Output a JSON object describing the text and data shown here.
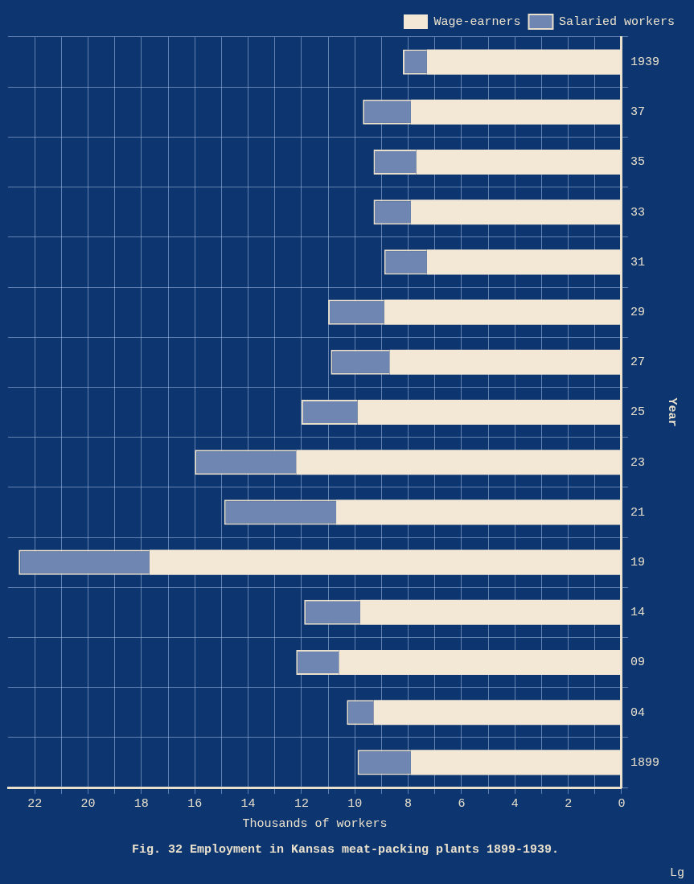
{
  "chart_data": {
    "type": "bar",
    "orientation": "horizontal",
    "stacked": true,
    "title": "Fig. 32 Employment in Kansas meat-packing plants 1899-1939.",
    "annotations": [
      "Lg"
    ],
    "xlabel": "Thousands of workers",
    "ylabel": "Year",
    "categories": [
      "1939",
      "37",
      "35",
      "33",
      "31",
      "29",
      "27",
      "25",
      "23",
      "21",
      "19",
      "14",
      "09",
      "04",
      "1899"
    ],
    "series": [
      {
        "name": "Wage-earners",
        "color": "#f2e8d5",
        "values": [
          7.3,
          7.9,
          7.7,
          7.9,
          7.3,
          8.9,
          8.7,
          9.9,
          12.2,
          10.7,
          17.7,
          9.8,
          10.6,
          9.3,
          7.9
        ]
      },
      {
        "name": "Salaried workers",
        "color": "#7086b2",
        "values": [
          0.9,
          1.8,
          1.6,
          1.4,
          1.6,
          2.1,
          2.2,
          2.1,
          3.8,
          4.2,
          4.9,
          2.1,
          1.6,
          1.0,
          2.0
        ]
      }
    ],
    "xlim": [
      23,
      0
    ],
    "xticks": [
      0,
      {
        "value": 1,
        "label": null
      },
      2,
      {
        "value": 3,
        "label": null
      },
      4,
      {
        "value": 5,
        "label": null
      },
      6,
      {
        "value": 7,
        "label": null
      },
      8,
      {
        "value": 9,
        "label": null
      },
      10,
      {
        "value": 11,
        "label": null
      },
      12,
      {
        "value": 13,
        "label": null
      },
      14,
      {
        "value": 15,
        "label": null
      },
      16,
      {
        "value": 17,
        "label": null
      },
      18,
      {
        "value": 19,
        "label": null
      },
      20,
      {
        "value": 21,
        "label": null
      },
      22
    ],
    "grid": true,
    "legend": "top right"
  }
}
